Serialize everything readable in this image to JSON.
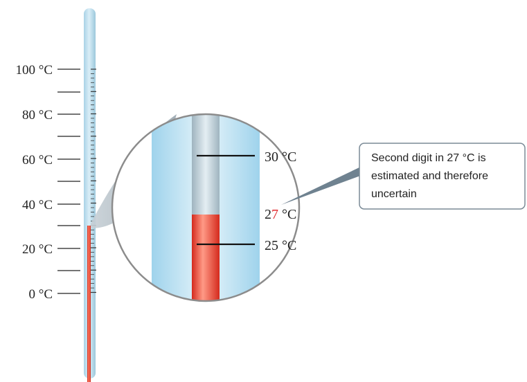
{
  "scale_labels": [
    "100 °C",
    "80 °C",
    "60 °C",
    "40 °C",
    "20 °C",
    "0 °C"
  ],
  "magnified": {
    "upper_label": "30 °C",
    "reading": {
      "certain_part": "2",
      "uncertain_part": "7",
      "unit": " °C"
    },
    "lower_label": "25 °C"
  },
  "callout": {
    "lines": [
      "Second digit in 27 °C is",
      "estimated and therefore",
      "uncertain"
    ]
  },
  "colors": {
    "tube_blue": "#b7dcec",
    "liquid_red": "#e8422e",
    "uncertain_digit": "#e0282d",
    "callout_border": "#7a8a96",
    "lens_border": "#8c8c8c",
    "lens_shadow": "#a9b4bc"
  }
}
